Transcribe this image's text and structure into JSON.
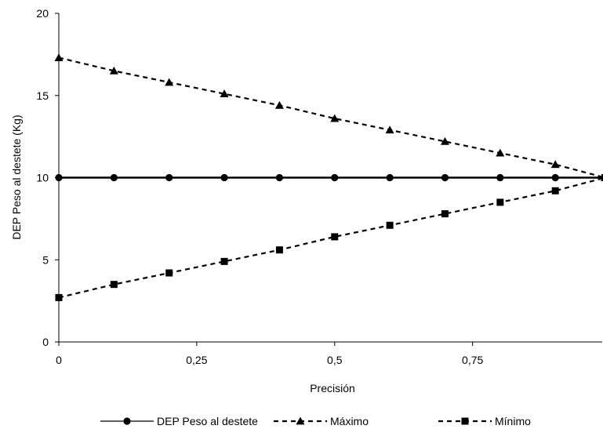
{
  "chart_data": {
    "type": "line",
    "title": "",
    "xlabel": "Precisión",
    "ylabel": "DEP Peso al destete (Kg)",
    "xlim": [
      0,
      0.985
    ],
    "ylim": [
      0,
      20
    ],
    "x_ticks": [
      0,
      0.25,
      0.5,
      0.75
    ],
    "x_tick_labels": [
      "0",
      "0,25",
      "0,5",
      "0,75"
    ],
    "y_ticks": [
      0,
      5,
      10,
      15,
      20
    ],
    "y_tick_labels": [
      "0",
      "5",
      "10",
      "15",
      "20"
    ],
    "grid": false,
    "legend_position": "bottom",
    "x": [
      0,
      0.1,
      0.2,
      0.3,
      0.4,
      0.5,
      0.6,
      0.7,
      0.8,
      0.9,
      0.99
    ],
    "series": [
      {
        "name": "DEP Peso al destete",
        "marker": "circle",
        "line_style": "solid",
        "values": [
          10,
          10,
          10,
          10,
          10,
          10,
          10,
          10,
          10,
          10,
          10
        ]
      },
      {
        "name": "Máximo",
        "marker": "triangle",
        "line_style": "dashed",
        "values": [
          17.3,
          16.5,
          15.8,
          15.1,
          14.4,
          13.6,
          12.9,
          12.2,
          11.5,
          10.8,
          10.0
        ]
      },
      {
        "name": "Mínimo",
        "marker": "square",
        "line_style": "dashed",
        "values": [
          2.7,
          3.5,
          4.2,
          4.9,
          5.6,
          6.4,
          7.1,
          7.8,
          8.5,
          9.2,
          10.0
        ]
      }
    ]
  }
}
